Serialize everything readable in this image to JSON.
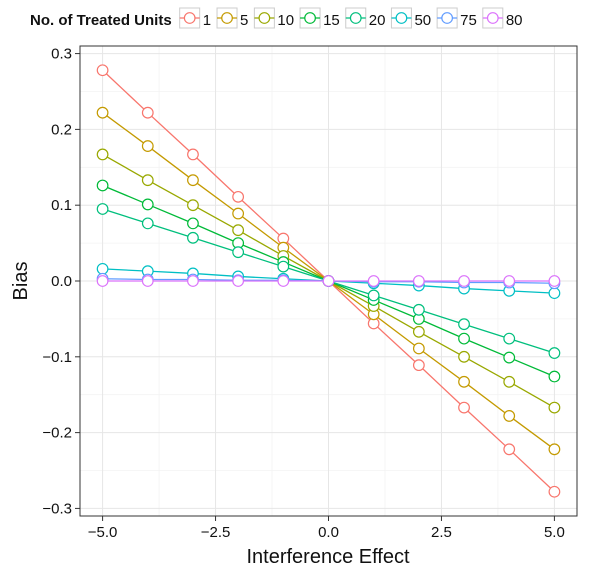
{
  "chart_data": {
    "type": "line",
    "xlabel": "Interference Effect",
    "ylabel": "Bias",
    "xlim": [
      -5.5,
      5.5
    ],
    "ylim": [
      -0.31,
      0.31
    ],
    "x_ticks": [
      -5.0,
      -2.5,
      0.0,
      2.5,
      5.0
    ],
    "x_tick_labels": [
      "−5.0",
      "−2.5",
      "0.0",
      "2.5",
      "5.0"
    ],
    "y_ticks": [
      -0.3,
      -0.2,
      -0.1,
      0.0,
      0.1,
      0.2,
      0.3
    ],
    "y_tick_labels": [
      "−0.3",
      "−0.2",
      "−0.1",
      "0.0",
      "0.1",
      "0.2",
      "0.3"
    ],
    "grid": true,
    "legend": {
      "title": "No. of Treated Units",
      "position": "top"
    },
    "x": [
      -5,
      -4,
      -3,
      -2,
      -1,
      0,
      1,
      2,
      3,
      4,
      5
    ],
    "series": [
      {
        "name": "1",
        "color": "#F8766D",
        "values": [
          0.278,
          0.222,
          0.167,
          0.111,
          0.056,
          0.0,
          -0.056,
          -0.111,
          -0.167,
          -0.222,
          -0.278
        ]
      },
      {
        "name": "5",
        "color": "#C49A00",
        "values": [
          0.222,
          0.178,
          0.133,
          0.089,
          0.044,
          0.0,
          -0.044,
          -0.089,
          -0.133,
          -0.178,
          -0.222
        ]
      },
      {
        "name": "10",
        "color": "#99A800",
        "values": [
          0.167,
          0.133,
          0.1,
          0.067,
          0.033,
          0.0,
          -0.033,
          -0.067,
          -0.1,
          -0.133,
          -0.167
        ]
      },
      {
        "name": "15",
        "color": "#00BA38",
        "values": [
          0.126,
          0.101,
          0.076,
          0.05,
          0.025,
          0.0,
          -0.025,
          -0.05,
          -0.076,
          -0.101,
          -0.126
        ]
      },
      {
        "name": "20",
        "color": "#00BF7D",
        "values": [
          0.095,
          0.076,
          0.057,
          0.038,
          0.019,
          0.0,
          -0.019,
          -0.038,
          -0.057,
          -0.076,
          -0.095
        ]
      },
      {
        "name": "50",
        "color": "#00BFC4",
        "values": [
          0.016,
          0.013,
          0.01,
          0.006,
          0.003,
          0.0,
          -0.003,
          -0.006,
          -0.01,
          -0.013,
          -0.016
        ]
      },
      {
        "name": "75",
        "color": "#619CFF",
        "values": [
          0.003,
          0.002,
          0.002,
          0.001,
          0.001,
          0.0,
          -0.001,
          -0.001,
          -0.002,
          -0.002,
          -0.003
        ]
      },
      {
        "name": "80",
        "color": "#DB72FB",
        "values": [
          0.0,
          0.0,
          0.0,
          0.0,
          0.0,
          0.0,
          0.0,
          0.0,
          0.0,
          0.0,
          0.0
        ]
      }
    ]
  }
}
